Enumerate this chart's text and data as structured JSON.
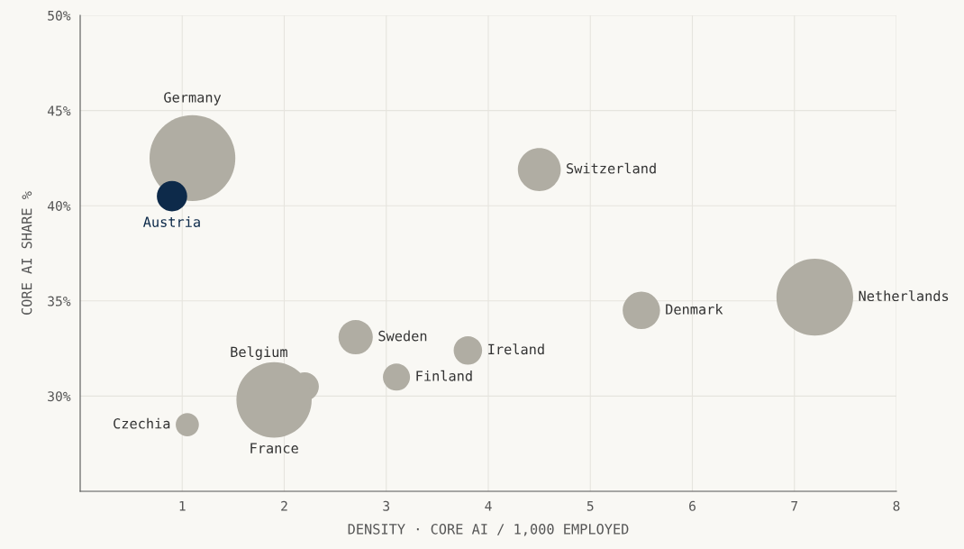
{
  "chart_data": {
    "type": "bubble",
    "xlabel": "DENSITY · CORE AI / 1,000 EMPLOYED",
    "ylabel": "CORE AI SHARE %",
    "xlim": [
      0,
      8
    ],
    "xticks": [
      1,
      2,
      3,
      4,
      5,
      6,
      7,
      8
    ],
    "ylim": [
      25,
      50
    ],
    "yticks": [
      {
        "value": 30,
        "label": "30%"
      },
      {
        "value": 35,
        "label": "35%"
      },
      {
        "value": 40,
        "label": "40%"
      },
      {
        "value": 45,
        "label": "45%"
      },
      {
        "value": 50,
        "label": "50%"
      }
    ],
    "grid": true,
    "legend": false,
    "x": [
      1.1,
      0.9,
      4.5,
      7.2,
      5.5,
      2.7,
      3.8,
      3.1,
      2.2,
      1.9,
      1.05
    ],
    "values": [
      42.5,
      40.5,
      41.9,
      35.2,
      34.5,
      33.1,
      32.4,
      31.0,
      30.5,
      29.8,
      28.5
    ],
    "sizes": [
      1,
      0.125,
      0.25,
      0.8,
      0.19,
      0.16,
      0.11,
      0.1,
      0.11,
      0.77,
      0.073
    ],
    "colors": [
      "#b0ada3",
      "#0d2a4a",
      "#b0ada3",
      "#b0ada3",
      "#b0ada3",
      "#b0ada3",
      "#b0ada3",
      "#b0ada3",
      "#b0ada3",
      "#b0ada3",
      "#b0ada3"
    ],
    "annotations": [
      "Germany",
      {
        "text": "Austria",
        "x": 0.9,
        "y": 40.5
      },
      {
        "text": "Switzerland",
        "x": 4.5,
        "y": 41.9
      },
      "Netherlands",
      {
        "text": "Denmark",
        "x": 5.5,
        "y": 34.5
      },
      {
        "text": "Sweden",
        "x": 2.7,
        "y": 33.1
      },
      {
        "text": "Ireland",
        "x": 3.8,
        "y": 32.4
      },
      {
        "text": "Finland",
        "x": 3.1,
        "y": 31.0
      },
      {
        "text": "Belgium",
        "x": 2.2,
        "y": 30.5
      },
      "France",
      {
        "text": "Czechia",
        "x": 1.05,
        "y": 28.5
      }
    ]
  }
}
